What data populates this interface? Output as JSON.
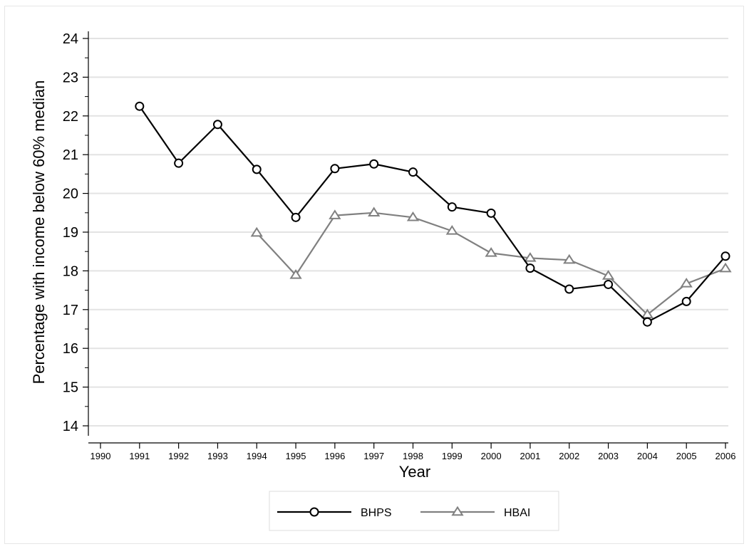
{
  "chart_data": {
    "type": "line",
    "xlabel": "Year",
    "ylabel": "Percentage with income below 60% median",
    "xlim": [
      1990,
      2006
    ],
    "ylim": [
      14,
      24
    ],
    "x_ticks": [
      "1990",
      "1991",
      "1992",
      "1993",
      "1994",
      "1995",
      "1996",
      "1997",
      "1998",
      "1999",
      "2000",
      "2001",
      "2002",
      "2003",
      "2004",
      "2005",
      "2006"
    ],
    "y_ticks": [
      "14",
      "15",
      "16",
      "17",
      "18",
      "19",
      "20",
      "21",
      "22",
      "23",
      "24"
    ],
    "grid": "horizontal",
    "legend_position": "bottom",
    "series": [
      {
        "name": "BHPS",
        "color": "#000000",
        "marker": "circle",
        "x": [
          1991,
          1992,
          1993,
          1994,
          1995,
          1996,
          1997,
          1998,
          1999,
          2000,
          2001,
          2002,
          2003,
          2004,
          2005,
          2006
        ],
        "values": [
          22.25,
          20.78,
          21.78,
          20.62,
          19.38,
          20.64,
          20.76,
          20.55,
          19.65,
          19.49,
          18.07,
          17.53,
          17.65,
          16.68,
          17.21,
          18.38
        ]
      },
      {
        "name": "HBAI",
        "color": "#808080",
        "marker": "triangle",
        "x": [
          1994,
          1995,
          1996,
          1997,
          1998,
          1999,
          2000,
          2001,
          2002,
          2003,
          2004,
          2005,
          2006
        ],
        "values": [
          18.98,
          17.89,
          19.43,
          19.5,
          19.38,
          19.03,
          18.46,
          18.33,
          18.28,
          17.87,
          16.87,
          17.67,
          18.06
        ]
      }
    ]
  }
}
